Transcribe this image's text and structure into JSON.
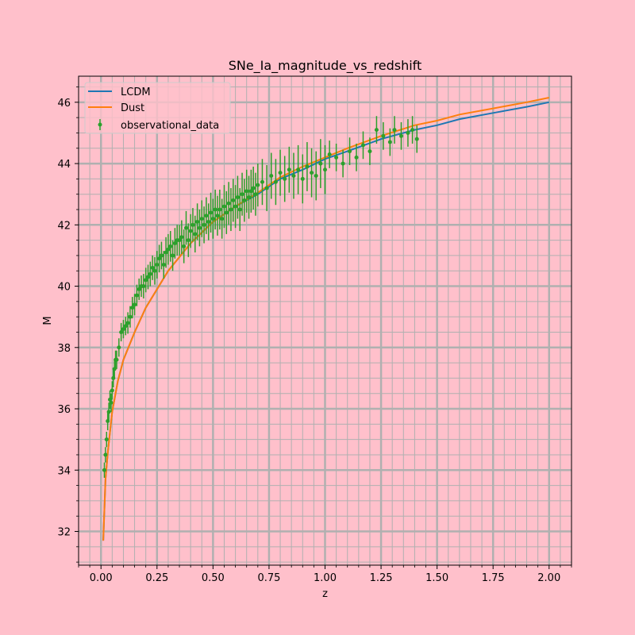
{
  "chart_data": {
    "type": "line",
    "title": "SNe_Ia_magnitude_vs_redshift",
    "xlabel": "z",
    "ylabel": "M",
    "xlim": [
      -0.1,
      2.1
    ],
    "ylim": [
      30.9,
      46.85
    ],
    "x_ticks": [
      0.0,
      0.25,
      0.5,
      0.75,
      1.0,
      1.25,
      1.5,
      1.75,
      2.0
    ],
    "x_tick_labels": [
      "0.00",
      "0.25",
      "0.50",
      "0.75",
      "1.00",
      "1.25",
      "1.50",
      "1.75",
      "2.00"
    ],
    "y_ticks": [
      32,
      34,
      36,
      38,
      40,
      42,
      44,
      46
    ],
    "y_tick_labels": [
      "32",
      "34",
      "36",
      "38",
      "40",
      "42",
      "44",
      "46"
    ],
    "grid": "on (major and minor)",
    "legend_position": "top-left",
    "series": [
      {
        "name": "LCDM",
        "kind": "line",
        "color": "#1f77b4",
        "x": [
          0.01,
          0.02,
          0.03,
          0.05,
          0.075,
          0.1,
          0.15,
          0.2,
          0.3,
          0.4,
          0.5,
          0.6,
          0.7,
          0.8,
          0.9,
          1.0,
          1.1,
          1.25,
          1.4,
          1.5,
          1.6,
          1.75,
          1.9,
          2.0
        ],
        "y": [
          31.7,
          33.7,
          34.55,
          35.9,
          36.9,
          37.6,
          38.5,
          39.3,
          40.5,
          41.4,
          42.1,
          42.6,
          43.0,
          43.5,
          43.8,
          44.15,
          44.4,
          44.8,
          45.1,
          45.25,
          45.45,
          45.65,
          45.85,
          46.0
        ]
      },
      {
        "name": "Dust",
        "kind": "line",
        "color": "#ff7f0e",
        "x": [
          0.01,
          0.02,
          0.03,
          0.05,
          0.075,
          0.1,
          0.15,
          0.2,
          0.3,
          0.4,
          0.5,
          0.6,
          0.7,
          0.8,
          0.9,
          1.0,
          1.1,
          1.25,
          1.4,
          1.5,
          1.6,
          1.75,
          1.9,
          2.0
        ],
        "y": [
          31.7,
          33.7,
          34.55,
          35.9,
          36.9,
          37.6,
          38.5,
          39.3,
          40.5,
          41.4,
          42.1,
          42.6,
          43.05,
          43.55,
          43.9,
          44.2,
          44.5,
          44.9,
          45.25,
          45.4,
          45.6,
          45.8,
          46.0,
          46.15
        ]
      },
      {
        "name": "observational_data",
        "kind": "errorbar",
        "color": "#2ca02c",
        "x": [
          0.015,
          0.02,
          0.025,
          0.03,
          0.035,
          0.04,
          0.045,
          0.05,
          0.055,
          0.06,
          0.065,
          0.07,
          0.08,
          0.09,
          0.1,
          0.11,
          0.12,
          0.13,
          0.14,
          0.15,
          0.16,
          0.17,
          0.18,
          0.19,
          0.2,
          0.21,
          0.22,
          0.23,
          0.24,
          0.25,
          0.26,
          0.27,
          0.28,
          0.29,
          0.3,
          0.31,
          0.32,
          0.33,
          0.34,
          0.35,
          0.36,
          0.37,
          0.38,
          0.39,
          0.4,
          0.41,
          0.42,
          0.43,
          0.44,
          0.45,
          0.46,
          0.47,
          0.48,
          0.49,
          0.5,
          0.51,
          0.52,
          0.53,
          0.54,
          0.55,
          0.56,
          0.57,
          0.58,
          0.59,
          0.6,
          0.61,
          0.62,
          0.63,
          0.64,
          0.65,
          0.66,
          0.67,
          0.68,
          0.69,
          0.7,
          0.72,
          0.74,
          0.76,
          0.78,
          0.8,
          0.82,
          0.84,
          0.86,
          0.88,
          0.9,
          0.92,
          0.94,
          0.96,
          0.98,
          1.0,
          1.02,
          1.05,
          1.08,
          1.11,
          1.14,
          1.17,
          1.2,
          1.23,
          1.26,
          1.29,
          1.31,
          1.34,
          1.37,
          1.39,
          1.41
        ],
        "y": [
          34.0,
          34.5,
          35.0,
          35.6,
          35.9,
          36.3,
          36.2,
          36.6,
          37.0,
          37.3,
          37.6,
          37.6,
          38.0,
          38.5,
          38.6,
          38.7,
          38.8,
          39.0,
          39.3,
          39.4,
          39.7,
          39.9,
          40.0,
          40.0,
          40.2,
          40.3,
          40.4,
          40.6,
          40.5,
          40.7,
          40.9,
          41.0,
          40.7,
          41.1,
          41.2,
          41.3,
          41.0,
          41.4,
          41.5,
          41.5,
          41.6,
          41.3,
          41.9,
          41.5,
          41.8,
          42.0,
          41.7,
          42.1,
          41.9,
          42.2,
          42.0,
          42.3,
          42.1,
          42.4,
          42.2,
          42.5,
          42.3,
          42.5,
          42.2,
          42.6,
          42.4,
          42.7,
          42.5,
          42.8,
          42.6,
          42.9,
          42.5,
          43.0,
          42.8,
          43.1,
          42.9,
          43.1,
          43.2,
          43.0,
          43.3,
          43.4,
          43.2,
          43.6,
          43.4,
          43.7,
          43.5,
          43.8,
          43.6,
          43.8,
          43.5,
          43.9,
          43.7,
          43.6,
          44.0,
          43.8,
          44.3,
          44.2,
          44.0,
          44.4,
          44.2,
          44.6,
          44.4,
          45.1,
          44.9,
          44.7,
          45.1,
          44.9,
          45.0,
          45.1,
          44.8
        ],
        "yerr": [
          0.25,
          0.25,
          0.25,
          0.3,
          0.3,
          0.3,
          0.3,
          0.3,
          0.3,
          0.3,
          0.3,
          0.3,
          0.3,
          0.3,
          0.3,
          0.3,
          0.35,
          0.35,
          0.35,
          0.35,
          0.35,
          0.35,
          0.35,
          0.4,
          0.4,
          0.4,
          0.4,
          0.4,
          0.45,
          0.45,
          0.45,
          0.45,
          0.45,
          0.5,
          0.5,
          0.5,
          0.5,
          0.5,
          0.5,
          0.5,
          0.55,
          0.55,
          0.55,
          0.55,
          0.55,
          0.55,
          0.6,
          0.6,
          0.6,
          0.6,
          0.6,
          0.6,
          0.6,
          0.65,
          0.65,
          0.65,
          0.65,
          0.65,
          0.65,
          0.7,
          0.7,
          0.7,
          0.7,
          0.7,
          0.7,
          0.7,
          0.7,
          0.7,
          0.7,
          0.7,
          0.7,
          0.7,
          0.7,
          0.7,
          0.7,
          0.75,
          0.75,
          0.75,
          0.75,
          0.75,
          0.75,
          0.75,
          0.75,
          0.8,
          0.8,
          0.8,
          0.8,
          0.8,
          0.8,
          0.8,
          0.45,
          0.45,
          0.45,
          0.45,
          0.45,
          0.45,
          0.45,
          0.45,
          0.45,
          0.45,
          0.45,
          0.45,
          0.45,
          0.45,
          0.45
        ]
      }
    ]
  }
}
